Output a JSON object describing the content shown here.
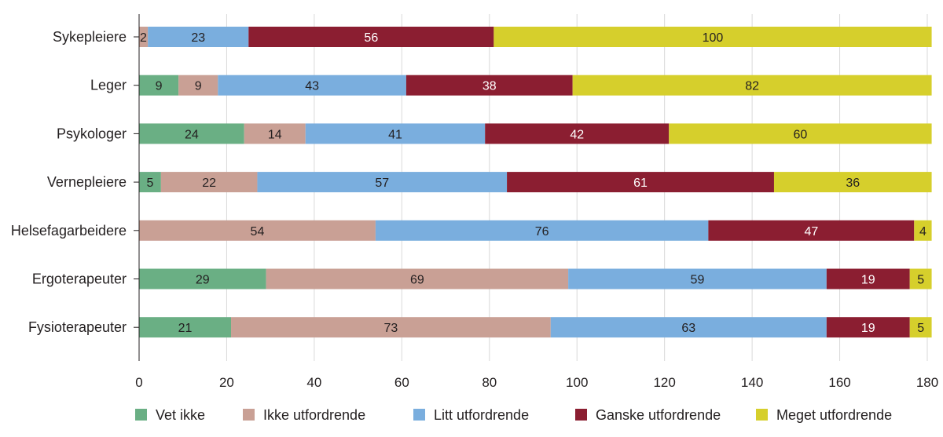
{
  "chart_data": {
    "type": "bar",
    "orientation": "horizontal",
    "stacked": true,
    "title": "",
    "xlabel": "",
    "ylabel": "",
    "xlim": [
      0,
      180
    ],
    "xticks": [
      0,
      20,
      40,
      60,
      80,
      100,
      120,
      140,
      160,
      180
    ],
    "grid": true,
    "legend_position": "bottom",
    "categories": [
      "Sykepleiere",
      "Leger",
      "Psykologer",
      "Vernepleiere",
      "Helsefagarbeidere",
      "Ergoterapeuter",
      "Fysioterapeuter"
    ],
    "series": [
      {
        "name": "Vet ikke",
        "color": "#6aaf84",
        "label_color": "#231f20",
        "values": [
          0,
          9,
          24,
          5,
          0,
          29,
          21
        ]
      },
      {
        "name": "Ikke utfordrende",
        "color": "#c9a095",
        "label_color": "#231f20",
        "values": [
          2,
          9,
          14,
          22,
          54,
          69,
          73
        ]
      },
      {
        "name": "Litt utfordrende",
        "color": "#7aaede",
        "label_color": "#231f20",
        "values": [
          23,
          43,
          41,
          57,
          76,
          59,
          63
        ]
      },
      {
        "name": "Ganske utfordrende",
        "color": "#8b1e31",
        "label_color": "#ffffff",
        "values": [
          56,
          38,
          42,
          61,
          47,
          19,
          19
        ]
      },
      {
        "name": "Meget utfordrende",
        "color": "#d6cf2c",
        "label_color": "#231f20",
        "values": [
          100,
          82,
          60,
          36,
          4,
          5,
          5
        ]
      }
    ]
  }
}
